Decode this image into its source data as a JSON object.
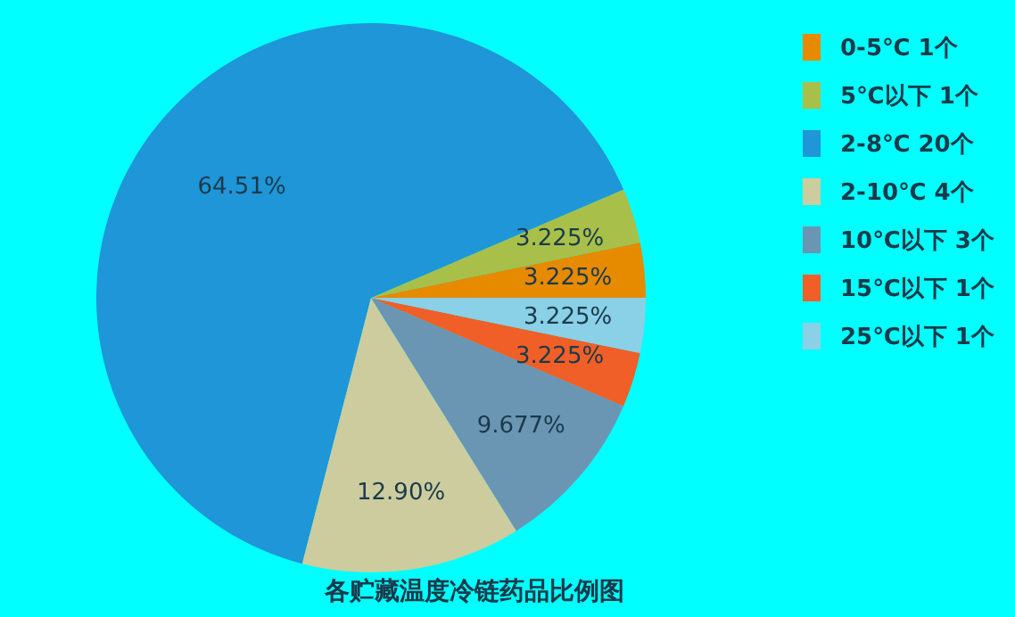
{
  "chart_data": {
    "type": "pie",
    "title": "各贮藏温度冷链药品比例图",
    "categories": [
      "0-5℃ 1个",
      "5℃以下 1个",
      "2-8℃ 20个",
      "2-10℃ 4个",
      "10℃以下 3个",
      "15℃以下 1个",
      "25℃以下 1个"
    ],
    "values": [
      3.225,
      3.225,
      64.51,
      12.9,
      9.677,
      3.225,
      3.225
    ],
    "value_labels": [
      "3.225%",
      "3.225%",
      "64.51%",
      "12.90%",
      "9.677%",
      "3.225%",
      "3.225%"
    ],
    "colors": [
      "#e68a00",
      "#a8bf4a",
      "#1e96d8",
      "#cccc9e",
      "#6a96b4",
      "#f05f28",
      "#8ad0e6"
    ],
    "legend": "top right"
  }
}
